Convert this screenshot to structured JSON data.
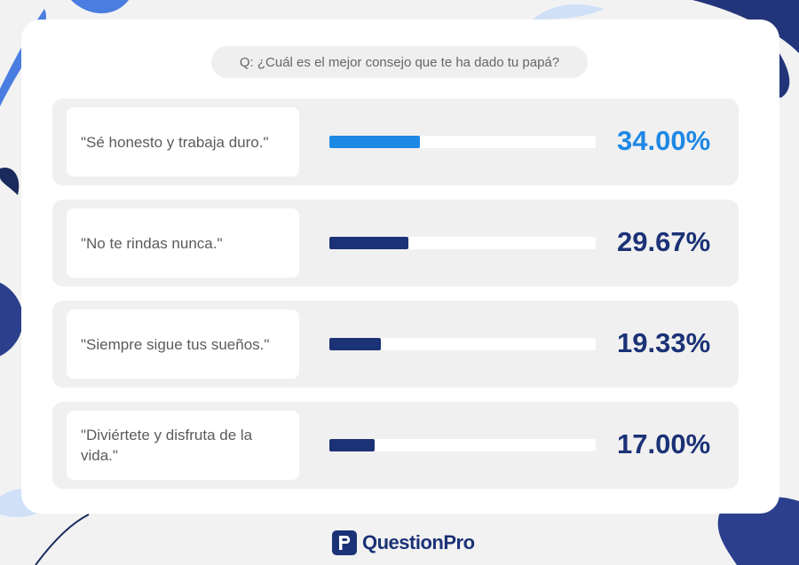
{
  "question": "Q: ¿Cuál es el mejor consejo que te ha dado tu papá?",
  "chart_data": {
    "type": "bar",
    "orientation": "horizontal",
    "categories": [
      "\"Sé honesto y trabaja duro.\"",
      "\"No te rindas nunca.\"",
      "\"Siempre sigue tus sueños.\"",
      "\"Diviértete y disfruta de la vida.\""
    ],
    "values": [
      34.0,
      29.67,
      19.33,
      17.0
    ],
    "value_labels": [
      "34.00%",
      "29.67%",
      "19.33%",
      "17.00%"
    ],
    "xlim": [
      0,
      100
    ],
    "colors": [
      "#1e88e5",
      "#1b3276",
      "#1b3276",
      "#1b3276"
    ]
  },
  "brand": {
    "name": "QuestionPro"
  }
}
